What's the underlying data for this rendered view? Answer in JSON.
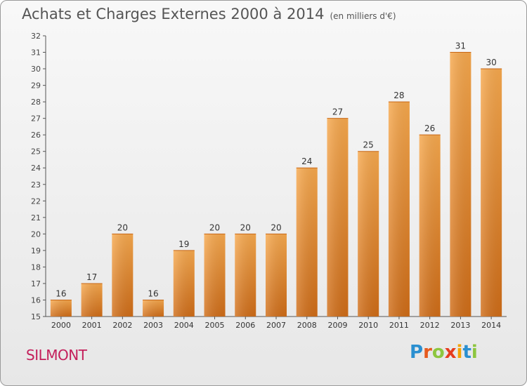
{
  "title": "Achats et Charges Externes 2000 à 2014",
  "unit": "(en milliers d'€)",
  "commune": "SILMONT",
  "logo": {
    "text": "Proxiti",
    "letters": [
      {
        "ch": "P",
        "color": "#2a8fd0"
      },
      {
        "ch": "r",
        "color": "#e65a1e"
      },
      {
        "ch": "o",
        "color": "#8dc63f"
      },
      {
        "ch": "x",
        "color": "#e63c1e"
      },
      {
        "ch": "i",
        "color": "#f4a300"
      },
      {
        "ch": "t",
        "color": "#2a8fd0"
      },
      {
        "ch": "i",
        "color": "#8dc63f"
      }
    ]
  },
  "chart_data": {
    "type": "bar",
    "title": "Achats et Charges Externes 2000 à 2014",
    "categories": [
      "2000",
      "2001",
      "2002",
      "2003",
      "2004",
      "2005",
      "2006",
      "2007",
      "2008",
      "2009",
      "2010",
      "2011",
      "2012",
      "2013",
      "2014"
    ],
    "values": [
      16,
      17,
      20,
      16,
      19,
      20,
      20,
      20,
      24,
      27,
      25,
      28,
      26,
      31,
      30
    ],
    "ylim": [
      15,
      32
    ],
    "yticks": [
      15,
      16,
      17,
      18,
      19,
      20,
      21,
      22,
      23,
      24,
      25,
      26,
      27,
      28,
      29,
      30,
      31,
      32
    ],
    "grid": false,
    "bar_color": "#f19a3f",
    "bar_color_dark": "#d2711c"
  }
}
